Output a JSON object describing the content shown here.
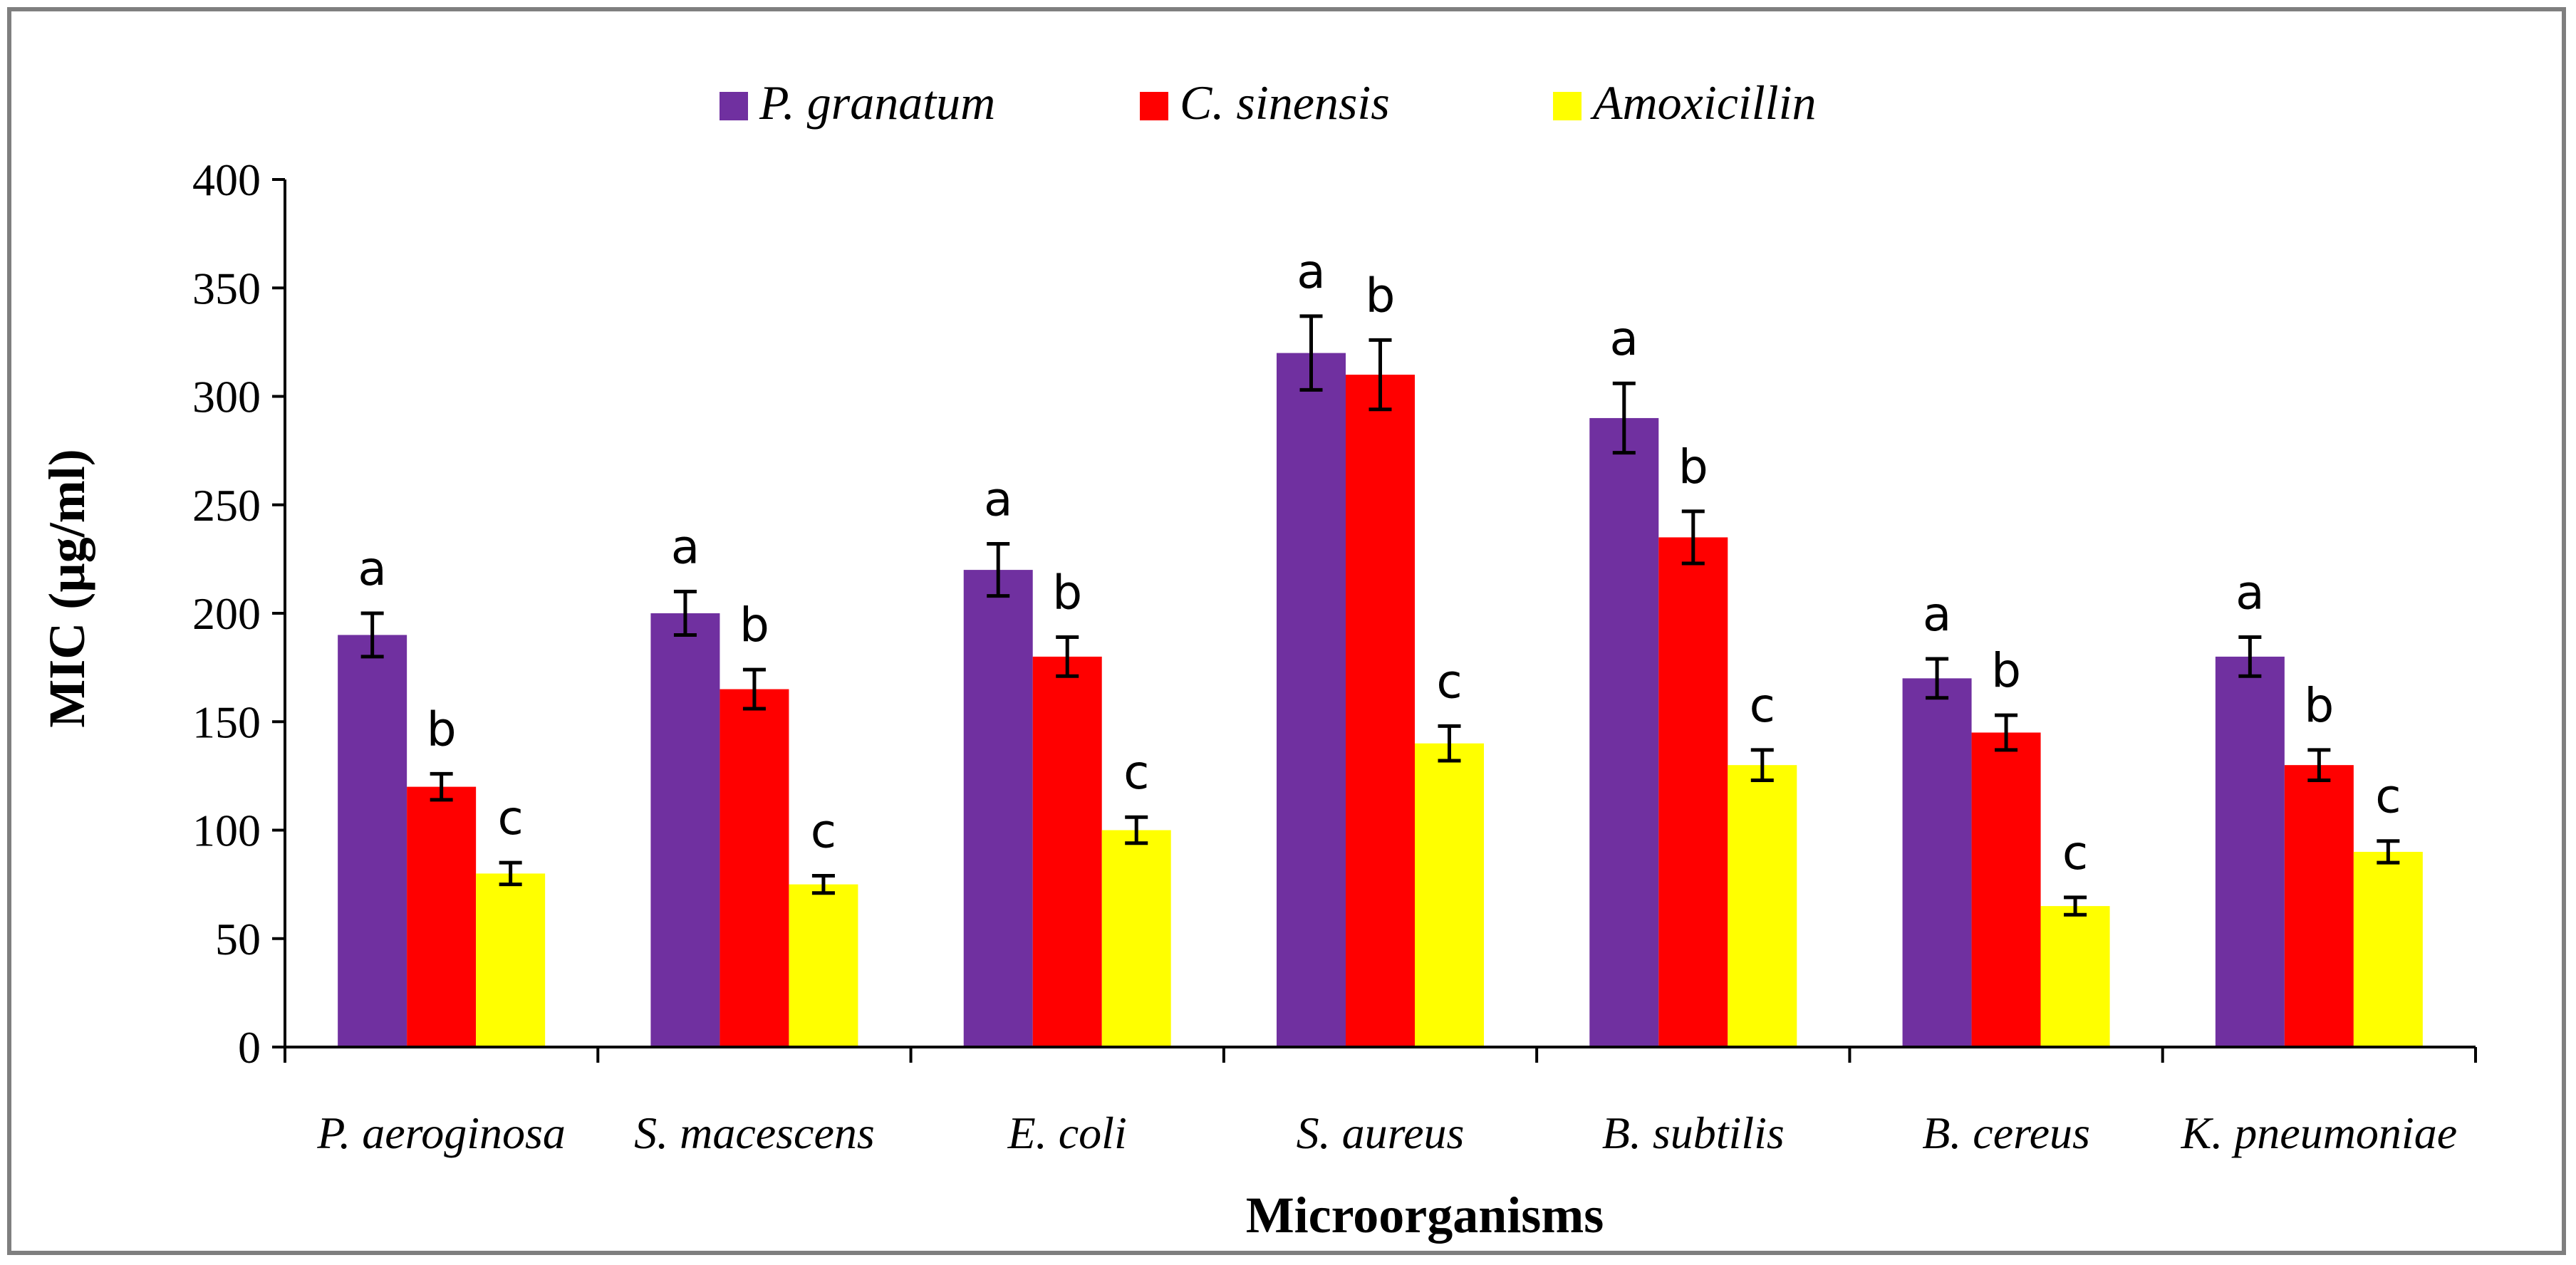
{
  "chart_data": {
    "type": "bar",
    "title": "",
    "xlabel": "Microorganisms",
    "ylabel": "MIC (µg/ml)",
    "ylim": [
      0,
      400
    ],
    "yticks": [
      "0",
      "50",
      "100",
      "150",
      "200",
      "250",
      "300",
      "350",
      "400"
    ],
    "grid": false,
    "legend": "top",
    "categories": [
      "P. aeroginosa",
      "S. macescens",
      "E. coli",
      "S. aureus",
      "B. subtilis",
      "B. cereus",
      "K. pneumoniae"
    ],
    "series": [
      {
        "name": "P. granatum",
        "color": "#7030a0",
        "values": [
          190,
          200,
          220,
          320,
          290,
          170,
          180
        ],
        "errors": [
          10,
          10,
          12,
          17,
          16,
          9,
          9
        ],
        "labels": [
          "a",
          "a",
          "a",
          "a",
          "a",
          "a",
          "a"
        ]
      },
      {
        "name": "C. sinensis",
        "color": "#ff0000",
        "values": [
          120,
          165,
          180,
          310,
          235,
          145,
          130
        ],
        "errors": [
          6,
          9,
          9,
          16,
          12,
          8,
          7
        ],
        "labels": [
          "b",
          "b",
          "b",
          "b",
          "b",
          "b",
          "b"
        ]
      },
      {
        "name": "Amoxicillin",
        "color": "#ffff00",
        "values": [
          80,
          75,
          100,
          140,
          130,
          65,
          90
        ],
        "errors": [
          5,
          4,
          6,
          8,
          7,
          4,
          5
        ],
        "labels": [
          "c",
          "c",
          "c",
          "c",
          "c",
          "c",
          "c"
        ]
      }
    ]
  }
}
